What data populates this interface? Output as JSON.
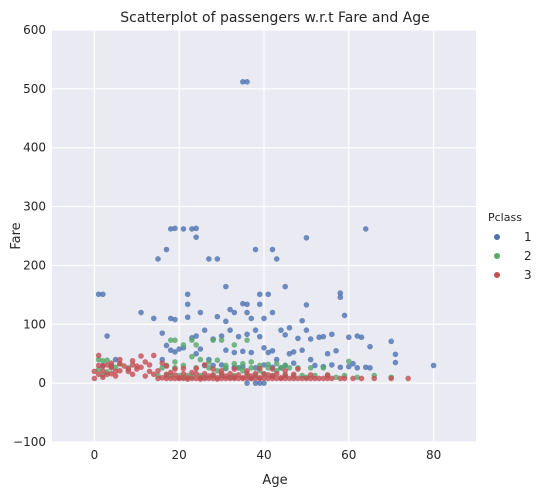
{
  "chart_data": {
    "type": "scatter",
    "title": "Scatterplot of passengers w.r.t Fare and Age",
    "xlabel": "Age",
    "ylabel": "Fare",
    "xlim": [
      -10,
      90
    ],
    "ylim": [
      -100,
      600
    ],
    "xticks": [
      0,
      20,
      40,
      60,
      80
    ],
    "yticks": [
      -100,
      0,
      100,
      200,
      300,
      400,
      500,
      600
    ],
    "xtick_labels": [
      "0",
      "20",
      "40",
      "60",
      "80"
    ],
    "ytick_labels": [
      "−100",
      "0",
      "100",
      "200",
      "300",
      "400",
      "500",
      "600"
    ],
    "grid": true,
    "legend": {
      "title": "Pclass",
      "placement": "right"
    },
    "series": [
      {
        "name": "1",
        "color": "#4c72b0",
        "points": [
          [
            35,
            512
          ],
          [
            36,
            512
          ],
          [
            18,
            262
          ],
          [
            19,
            263
          ],
          [
            21,
            262
          ],
          [
            24,
            263
          ],
          [
            23,
            262
          ],
          [
            64,
            262
          ],
          [
            17,
            227
          ],
          [
            38,
            227
          ],
          [
            42,
            227
          ],
          [
            24,
            248
          ],
          [
            50,
            247
          ],
          [
            15,
            211
          ],
          [
            27,
            211
          ],
          [
            29,
            211
          ],
          [
            43,
            211
          ],
          [
            1,
            151
          ],
          [
            2,
            151
          ],
          [
            22,
            151
          ],
          [
            39,
            151
          ],
          [
            41,
            151
          ],
          [
            58,
            153
          ],
          [
            58,
            146
          ],
          [
            45,
            164
          ],
          [
            31,
            164
          ],
          [
            11,
            120
          ],
          [
            14,
            110
          ],
          [
            18,
            110
          ],
          [
            19,
            108
          ],
          [
            22,
            134
          ],
          [
            22,
            112
          ],
          [
            25,
            120
          ],
          [
            26,
            90
          ],
          [
            29,
            113
          ],
          [
            31,
            105
          ],
          [
            32,
            125
          ],
          [
            33,
            120
          ],
          [
            35,
            135
          ],
          [
            36,
            134
          ],
          [
            36,
            120
          ],
          [
            37,
            110
          ],
          [
            39,
            134
          ],
          [
            40,
            110
          ],
          [
            42,
            120
          ],
          [
            46,
            94
          ],
          [
            49,
            106
          ],
          [
            50,
            133
          ],
          [
            51,
            75
          ],
          [
            56,
            83
          ],
          [
            59,
            115
          ],
          [
            60,
            78
          ],
          [
            62,
            80
          ],
          [
            63,
            78
          ],
          [
            65,
            62
          ],
          [
            70,
            71
          ],
          [
            71,
            49
          ],
          [
            71,
            35
          ],
          [
            80,
            30
          ],
          [
            3,
            80
          ],
          [
            5,
            40
          ],
          [
            16,
            85
          ],
          [
            17,
            64
          ],
          [
            20,
            58
          ],
          [
            21,
            60
          ],
          [
            23,
            77
          ],
          [
            24,
            80
          ],
          [
            25,
            58
          ],
          [
            27,
            40
          ],
          [
            28,
            75
          ],
          [
            30,
            80
          ],
          [
            31,
            56
          ],
          [
            32,
            90
          ],
          [
            33,
            52
          ],
          [
            34,
            79
          ],
          [
            35,
            54
          ],
          [
            36,
            83
          ],
          [
            37,
            52
          ],
          [
            38,
            90
          ],
          [
            39,
            79
          ],
          [
            40,
            60
          ],
          [
            41,
            52
          ],
          [
            42,
            55
          ],
          [
            43,
            40
          ],
          [
            44,
            90
          ],
          [
            45,
            82
          ],
          [
            46,
            50
          ],
          [
            47,
            53
          ],
          [
            48,
            76
          ],
          [
            49,
            56
          ],
          [
            50,
            90
          ],
          [
            51,
            40
          ],
          [
            52,
            30
          ],
          [
            53,
            78
          ],
          [
            54,
            28
          ],
          [
            55,
            50
          ],
          [
            56,
            31
          ],
          [
            57,
            55
          ],
          [
            58,
            27
          ],
          [
            60,
            28
          ],
          [
            61,
            33
          ],
          [
            62,
            26
          ],
          [
            64,
            27
          ],
          [
            65,
            26
          ],
          [
            47,
            34
          ],
          [
            45,
            30
          ],
          [
            44,
            26
          ],
          [
            40,
            31
          ],
          [
            38,
            26
          ],
          [
            36,
            0
          ],
          [
            38,
            0
          ],
          [
            39,
            0
          ],
          [
            40,
            0
          ],
          [
            37,
            8
          ],
          [
            34,
            26
          ],
          [
            30,
            31
          ],
          [
            28,
            30
          ],
          [
            26,
            30
          ],
          [
            24,
            50
          ],
          [
            19,
            53
          ],
          [
            18,
            56
          ],
          [
            16,
            40
          ],
          [
            4,
            30
          ],
          [
            2,
            30
          ],
          [
            31,
            25
          ],
          [
            33,
            27
          ],
          [
            35,
            28
          ],
          [
            42,
            27
          ],
          [
            54,
            79
          ]
        ]
      },
      {
        "name": "2",
        "color": "#55a868",
        "points": [
          [
            1,
            40
          ],
          [
            2,
            38
          ],
          [
            3,
            39
          ],
          [
            1,
            23
          ],
          [
            4,
            26
          ],
          [
            5,
            27
          ],
          [
            3,
            19
          ],
          [
            2,
            14
          ],
          [
            8,
            26
          ],
          [
            6,
            33
          ],
          [
            15,
            13
          ],
          [
            18,
            73
          ],
          [
            19,
            73
          ],
          [
            21,
            65
          ],
          [
            23,
            73
          ],
          [
            24,
            65
          ],
          [
            28,
            73
          ],
          [
            30,
            73
          ],
          [
            33,
            65
          ],
          [
            36,
            73
          ],
          [
            16,
            26
          ],
          [
            17,
            13
          ],
          [
            18,
            13
          ],
          [
            19,
            26
          ],
          [
            20,
            13
          ],
          [
            21,
            10
          ],
          [
            22,
            13
          ],
          [
            23,
            11
          ],
          [
            24,
            26
          ],
          [
            25,
            13
          ],
          [
            26,
            10
          ],
          [
            27,
            26
          ],
          [
            28,
            13
          ],
          [
            29,
            21
          ],
          [
            30,
            13
          ],
          [
            31,
            26
          ],
          [
            32,
            10
          ],
          [
            33,
            13
          ],
          [
            34,
            26
          ],
          [
            35,
            21
          ],
          [
            36,
            13
          ],
          [
            37,
            26
          ],
          [
            38,
            13
          ],
          [
            39,
            21
          ],
          [
            40,
            15
          ],
          [
            41,
            26
          ],
          [
            42,
            13
          ],
          [
            43,
            21
          ],
          [
            44,
            26
          ],
          [
            45,
            13
          ],
          [
            46,
            26
          ],
          [
            47,
            13
          ],
          [
            48,
            26
          ],
          [
            49,
            13
          ],
          [
            50,
            10
          ],
          [
            51,
            26
          ],
          [
            52,
            13
          ],
          [
            54,
            26
          ],
          [
            55,
            13
          ],
          [
            57,
            10
          ],
          [
            59,
            13
          ],
          [
            60,
            37
          ],
          [
            62,
            10
          ],
          [
            66,
            13
          ],
          [
            70,
            10
          ],
          [
            25,
            40
          ],
          [
            27,
            36
          ],
          [
            29,
            39
          ],
          [
            31,
            30
          ],
          [
            33,
            33
          ],
          [
            35,
            33
          ],
          [
            37,
            36
          ],
          [
            39,
            30
          ],
          [
            41,
            32
          ],
          [
            43,
            33
          ],
          [
            45,
            30
          ],
          [
            23,
            45
          ],
          [
            21,
            30
          ],
          [
            19,
            36
          ],
          [
            17,
            30
          ]
        ]
      },
      {
        "name": "3",
        "color": "#c44e52",
        "points": [
          [
            0,
            20
          ],
          [
            0,
            8
          ],
          [
            1,
            15
          ],
          [
            1,
            30
          ],
          [
            1,
            47
          ],
          [
            2,
            21
          ],
          [
            2,
            29
          ],
          [
            2,
            10
          ],
          [
            3,
            15
          ],
          [
            3,
            31
          ],
          [
            4,
            16
          ],
          [
            4,
            27
          ],
          [
            4,
            34
          ],
          [
            5,
            20
          ],
          [
            5,
            12
          ],
          [
            6,
            33
          ],
          [
            6,
            21
          ],
          [
            7,
            29
          ],
          [
            8,
            24
          ],
          [
            8,
            20
          ],
          [
            9,
            31
          ],
          [
            9,
            15
          ],
          [
            10,
            29
          ],
          [
            10,
            24
          ],
          [
            11,
            46
          ],
          [
            12,
            12
          ],
          [
            13,
            20
          ],
          [
            14,
            47
          ],
          [
            14,
            15
          ],
          [
            15,
            8
          ],
          [
            16,
            34
          ],
          [
            16,
            9
          ],
          [
            17,
            8
          ],
          [
            17,
            15
          ],
          [
            18,
            8
          ],
          [
            18,
            18
          ],
          [
            19,
            8
          ],
          [
            19,
            14
          ],
          [
            20,
            8
          ],
          [
            20,
            9
          ],
          [
            21,
            8
          ],
          [
            21,
            16
          ],
          [
            22,
            7
          ],
          [
            22,
            9
          ],
          [
            23,
            8
          ],
          [
            23,
            18
          ],
          [
            24,
            8
          ],
          [
            24,
            16
          ],
          [
            25,
            7
          ],
          [
            25,
            9
          ],
          [
            26,
            8
          ],
          [
            26,
            16
          ],
          [
            27,
            8
          ],
          [
            27,
            12
          ],
          [
            28,
            8
          ],
          [
            28,
            14
          ],
          [
            29,
            7
          ],
          [
            29,
            9
          ],
          [
            30,
            8
          ],
          [
            30,
            16
          ],
          [
            31,
            8
          ],
          [
            31,
            12
          ],
          [
            32,
            8
          ],
          [
            32,
            16
          ],
          [
            33,
            8
          ],
          [
            33,
            10
          ],
          [
            34,
            8
          ],
          [
            34,
            14
          ],
          [
            35,
            8
          ],
          [
            35,
            9
          ],
          [
            36,
            8
          ],
          [
            36,
            16
          ],
          [
            37,
            8
          ],
          [
            37,
            12
          ],
          [
            38,
            8
          ],
          [
            38,
            16
          ],
          [
            39,
            8
          ],
          [
            39,
            9
          ],
          [
            40,
            8
          ],
          [
            40,
            16
          ],
          [
            41,
            8
          ],
          [
            41,
            14
          ],
          [
            42,
            8
          ],
          [
            42,
            12
          ],
          [
            43,
            8
          ],
          [
            43,
            16
          ],
          [
            44,
            8
          ],
          [
            44,
            9
          ],
          [
            45,
            8
          ],
          [
            45,
            14
          ],
          [
            46,
            8
          ],
          [
            47,
            8
          ],
          [
            47,
            15
          ],
          [
            48,
            8
          ],
          [
            48,
            24
          ],
          [
            49,
            8
          ],
          [
            50,
            8
          ],
          [
            51,
            8
          ],
          [
            51,
            14
          ],
          [
            52,
            8
          ],
          [
            53,
            8
          ],
          [
            54,
            8
          ],
          [
            55,
            8
          ],
          [
            55,
            14
          ],
          [
            56,
            8
          ],
          [
            58,
            8
          ],
          [
            59,
            8
          ],
          [
            61,
            8
          ],
          [
            63,
            8
          ],
          [
            66,
            8
          ],
          [
            70,
            8
          ],
          [
            74,
            8
          ],
          [
            12,
            36
          ],
          [
            13,
            31
          ],
          [
            11,
            27
          ],
          [
            9,
            38
          ],
          [
            15,
            21
          ],
          [
            17,
            29
          ],
          [
            19,
            24
          ],
          [
            21,
            25
          ],
          [
            24,
            25
          ],
          [
            26,
            31
          ],
          [
            28,
            24
          ],
          [
            30,
            21
          ],
          [
            33,
            24
          ],
          [
            36,
            21
          ],
          [
            39,
            25
          ],
          [
            42,
            24
          ],
          [
            45,
            21
          ],
          [
            6,
            40
          ]
        ]
      }
    ]
  }
}
